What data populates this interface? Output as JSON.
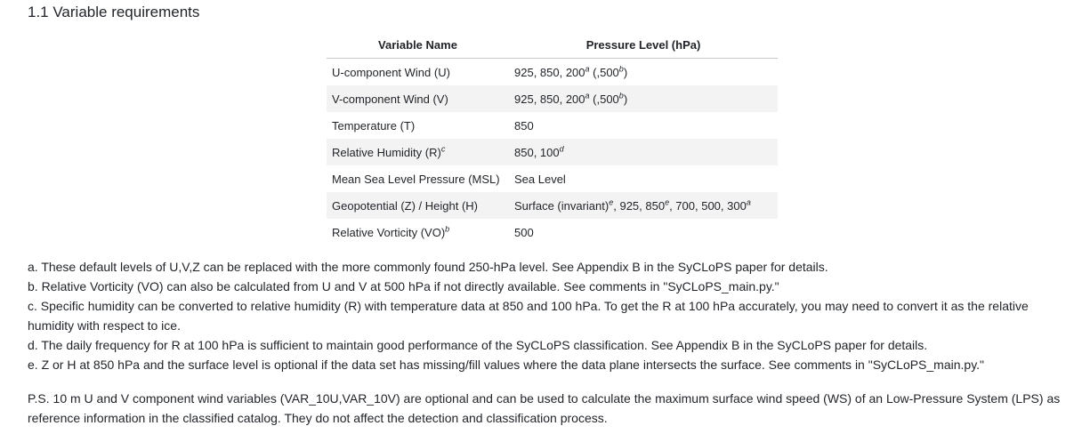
{
  "section": {
    "title": "1.1 Variable requirements"
  },
  "table": {
    "headers": [
      "Variable Name",
      "Pressure Level (hPa)"
    ],
    "rows": [
      {
        "name": "U-component Wind (U)",
        "name_sup": "",
        "level_parts": [
          [
            "925, 850, 200",
            "a"
          ],
          [
            " (,500",
            "b"
          ],
          [
            ")",
            ""
          ]
        ]
      },
      {
        "name": "V-component Wind (V)",
        "name_sup": "",
        "level_parts": [
          [
            "925, 850, 200",
            "a"
          ],
          [
            " (,500",
            "b"
          ],
          [
            ")",
            ""
          ]
        ]
      },
      {
        "name": "Temperature (T)",
        "name_sup": "",
        "level_parts": [
          [
            "850",
            ""
          ]
        ]
      },
      {
        "name": "Relative Humidity (R)",
        "name_sup": "c",
        "level_parts": [
          [
            "850, 100",
            "d"
          ]
        ]
      },
      {
        "name": "Mean Sea Level Pressure (MSL)",
        "name_sup": "",
        "level_parts": [
          [
            "Sea Level",
            ""
          ]
        ]
      },
      {
        "name": "Geopotential (Z) / Height (H)",
        "name_sup": "",
        "level_parts": [
          [
            "Surface (invariant)",
            "e"
          ],
          [
            ", 925, 850",
            "e"
          ],
          [
            ", 700, 500, 300",
            "a"
          ]
        ]
      },
      {
        "name": "Relative Vorticity (VO)",
        "name_sup": "b",
        "level_parts": [
          [
            "500",
            ""
          ]
        ]
      }
    ]
  },
  "notes": [
    "a. These default levels of U,V,Z can be replaced with the more commonly found 250-hPa level. See Appendix B in the SyCLoPS paper for details.",
    "b. Relative Vorticity (VO) can also be calculated from U and V at 500 hPa if not directly available. See comments in \"SyCLoPS_main.py.\"",
    "c. Specific humidity can be converted to relative humidity (R) with temperature data at 850 and 100 hPa. To get the R at 100 hPa accurately, you may need to convert it as the relative humidity with respect to ice.",
    "d. The daily frequency for R at 100 hPa is sufficient to maintain good performance of the SyCLoPS classification. See Appendix B in the SyCLoPS paper for details.",
    "e. Z or H at 850 hPa and the surface level is optional if the data set has missing/fill values where the data plane intersects the surface. See comments in \"SyCLoPS_main.py.\""
  ],
  "ps": "P.S. 10 m U and V component wind variables (VAR_10U,VAR_10V) are optional and can be used to calculate the maximum surface wind speed (WS) of an Low-Pressure System (LPS) as reference information in the classified catalog. They do not affect the detection and classification process."
}
